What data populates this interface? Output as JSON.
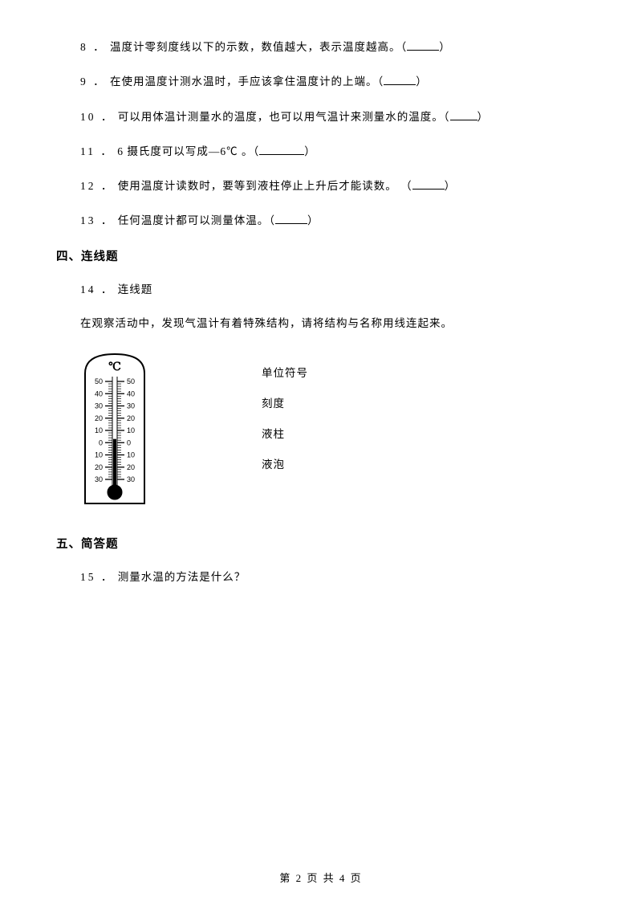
{
  "questions": {
    "q8": {
      "num": "8 ．",
      "text": "温度计零刻度线以下的示数，数值越大，表示温度越高。（",
      "close": "）"
    },
    "q9": {
      "num": "9 ．",
      "text": "在使用温度计测水温时，手应该拿住温度计的上端。（",
      "close": "）"
    },
    "q10": {
      "num": "10 ．",
      "text": "可以用体温计测量水的温度，也可以用气温计来测量水的温度。（",
      "close": "）"
    },
    "q11": {
      "num": "11 ．",
      "text": "6 摄氏度可以写成—6℃ 。（",
      "close": "）"
    },
    "q12": {
      "num": "12 ．",
      "text": "使用温度计读数时，要等到液柱停止上升后才能读数。  （",
      "close": "）"
    },
    "q13": {
      "num": "13 ．",
      "text": "任何温度计都可以测量体温。（",
      "close": "）"
    },
    "q14": {
      "num": "14 ．",
      "text": "连线题"
    },
    "q15": {
      "num": "15 ．",
      "text": "测量水温的方法是什么？"
    }
  },
  "sections": {
    "s4": "四、连线题",
    "s5": "五、简答题"
  },
  "q14_intro": "在观察活动中，发现气温计有着特殊结构，请将结构与名称用线连起来。",
  "thermometer": {
    "unit_symbol": "℃",
    "left_scale": [
      "50",
      "40",
      "30",
      "20",
      "10",
      "0",
      "10",
      "20",
      "30"
    ],
    "right_scale": [
      "50",
      "40",
      "30",
      "20",
      "10",
      "0",
      "10",
      "20",
      "30"
    ],
    "colors": {
      "outline": "#000000",
      "background": "#ffffff",
      "liquid": "#000000",
      "tick": "#000000",
      "text": "#000000"
    },
    "width": 86,
    "height": 196
  },
  "match_labels": {
    "a": "单位符号",
    "b": "刻度",
    "c": "液柱",
    "d": "液泡"
  },
  "footer": {
    "prefix": "第",
    "page": "2",
    "mid": "页 共",
    "total": "4",
    "suffix": "页"
  }
}
